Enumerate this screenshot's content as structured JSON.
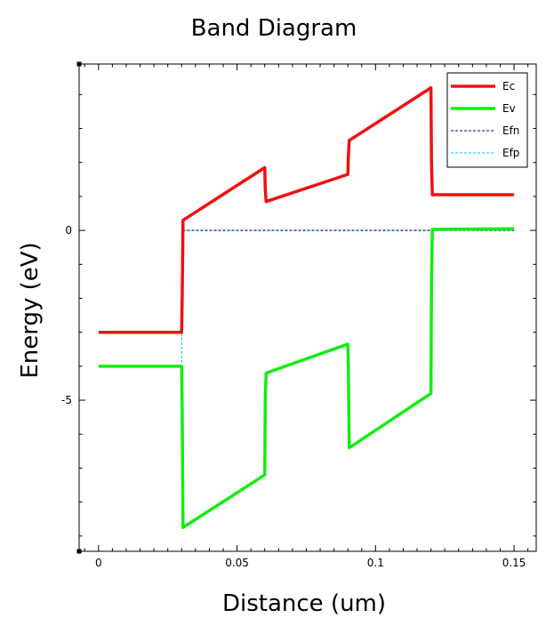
{
  "chart_data": {
    "type": "line",
    "title": "Band Diagram",
    "xlabel": "Distance (um)",
    "ylabel": "Energy (eV)",
    "xlim": [
      -0.007,
      0.158
    ],
    "ylim": [
      -9.45,
      4.9
    ],
    "x_ticks": [
      {
        "value": 0,
        "label": "0"
      },
      {
        "value": 0.05,
        "label": "0.05"
      },
      {
        "value": 0.1,
        "label": "0.1"
      },
      {
        "value": 0.15,
        "label": "0.15"
      }
    ],
    "y_ticks": [
      {
        "value": 0,
        "label": "0"
      },
      {
        "value": -5,
        "label": "-5"
      }
    ],
    "grid": false,
    "legend": "top-right",
    "series": [
      {
        "name": "Ec",
        "color": "#ee1111",
        "style": "solid",
        "points": [
          [
            0,
            -3.0
          ],
          [
            0.03,
            -3.0
          ],
          [
            0.0302,
            -2.0
          ],
          [
            0.0305,
            0.3
          ],
          [
            0.06,
            1.85
          ],
          [
            0.0602,
            1.2
          ],
          [
            0.0605,
            0.85
          ],
          [
            0.09,
            1.65
          ],
          [
            0.0902,
            2.2
          ],
          [
            0.0905,
            2.65
          ],
          [
            0.12,
            4.2
          ],
          [
            0.1202,
            2.0
          ],
          [
            0.1205,
            1.05
          ],
          [
            0.15,
            1.05
          ]
        ]
      },
      {
        "name": "Ev",
        "color": "#11ee11",
        "style": "solid",
        "points": [
          [
            0,
            -4.0
          ],
          [
            0.03,
            -4.0
          ],
          [
            0.0302,
            -5.3
          ],
          [
            0.0305,
            -8.75
          ],
          [
            0.06,
            -7.2
          ],
          [
            0.0602,
            -4.9
          ],
          [
            0.0605,
            -4.2
          ],
          [
            0.09,
            -3.35
          ],
          [
            0.0902,
            -4.1
          ],
          [
            0.0905,
            -6.4
          ],
          [
            0.12,
            -4.8
          ],
          [
            0.1202,
            -1.5
          ],
          [
            0.1205,
            0.03
          ],
          [
            0.15,
            0.05
          ]
        ]
      },
      {
        "name": "Efn",
        "color": "#000088",
        "style": "dashed",
        "points": [
          [
            0.03,
            -3.0
          ],
          [
            0.0302,
            0.0
          ],
          [
            0.15,
            0.0
          ]
        ]
      },
      {
        "name": "Efp",
        "color": "#00ccee",
        "style": "dashed",
        "points": [
          [
            0.03,
            -3.9
          ],
          [
            0.0302,
            0.0
          ],
          [
            0.15,
            0.0
          ]
        ]
      }
    ]
  }
}
